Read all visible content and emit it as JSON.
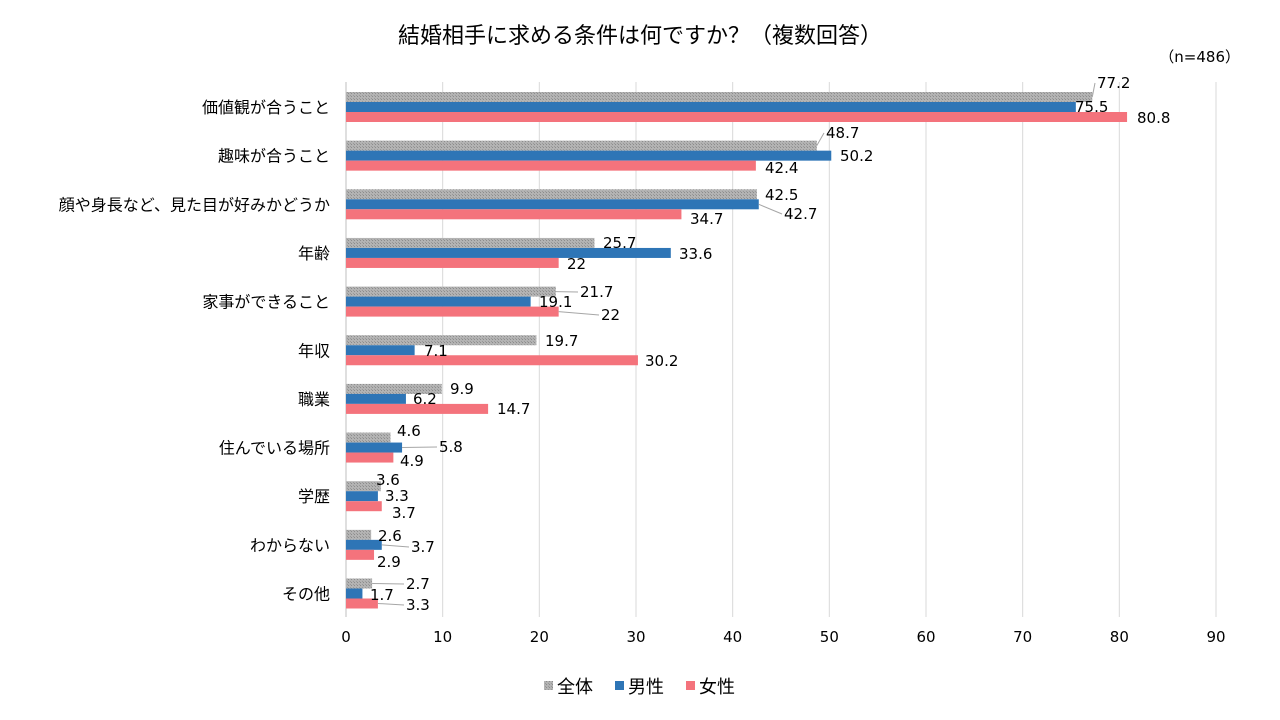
{
  "chart_data": {
    "type": "bar",
    "orientation": "horizontal",
    "title": "結婚相手に求める条件は何ですか？（複数回答）",
    "subtitle": "（n=486）",
    "categories": [
      "価値観が合うこと",
      "趣味が合うこと",
      "顔や身長など、見た目が好みかどうか",
      "年齢",
      "家事ができること",
      "年収",
      "職業",
      "住んでいる場所",
      "学歴",
      "わからない",
      "その他"
    ],
    "series": [
      {
        "name": "全体",
        "color": "#a6a6a6",
        "pattern": "hatched",
        "values": [
          77.2,
          48.7,
          42.5,
          25.7,
          21.7,
          19.7,
          9.9,
          4.6,
          3.6,
          2.6,
          2.7
        ]
      },
      {
        "name": "男性",
        "color": "#2e75b6",
        "values": [
          75.5,
          50.2,
          42.7,
          33.6,
          19.1,
          7.1,
          6.2,
          5.8,
          3.3,
          3.7,
          1.7
        ]
      },
      {
        "name": "女性",
        "color": "#f4737c",
        "values": [
          80.8,
          42.4,
          34.7,
          22,
          22,
          30.2,
          14.7,
          4.9,
          3.7,
          2.9,
          3.3
        ]
      }
    ],
    "xlim": [
      0,
      90
    ],
    "xticks": [
      "0",
      "10",
      "20",
      "30",
      "40",
      "50",
      "60",
      "70",
      "80",
      "90"
    ],
    "grid": "vertical",
    "legend": "bottom",
    "xlabel": "",
    "ylabel": ""
  }
}
